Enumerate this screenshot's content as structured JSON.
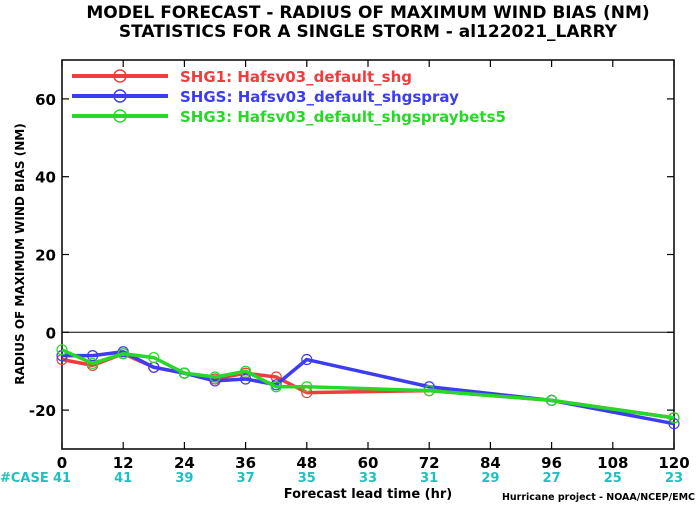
{
  "chart_data": {
    "type": "line",
    "title": "MODEL FORECAST - RADIUS OF MAXIMUM WIND BIAS (NM)",
    "subtitle": "STATISTICS FOR A SINGLE STORM - al122021_LARRY",
    "xlabel": "Forecast lead time (hr)",
    "ylabel": "RADIUS OF MAXIMUM WIND BIAS (NM)",
    "xlim": [
      0,
      120
    ],
    "ylim": [
      -30,
      70
    ],
    "x_ticks": [
      "0",
      "12",
      "24",
      "36",
      "48",
      "60",
      "72",
      "84",
      "96",
      "108",
      "120"
    ],
    "y_ticks": [
      "-20",
      "0",
      "20",
      "40",
      "60"
    ],
    "case_label": "#CASE",
    "case_counts": [
      "41",
      "41",
      "39",
      "37",
      "35",
      "33",
      "31",
      "29",
      "27",
      "25",
      "23"
    ],
    "credit": "Hurricane project - NOAA/NCEP/EMC",
    "legend_position": "top-left",
    "case_color": "#20c0c0",
    "series": [
      {
        "name": "SHG1: Hafsv03_default_shg",
        "color": "#f03c3c",
        "x": [
          0,
          6,
          12,
          18,
          24,
          30,
          36,
          42,
          48,
          72,
          96,
          120
        ],
        "y": [
          -7,
          -8.5,
          -5.5,
          -9,
          -10.5,
          -12,
          -10.5,
          -11.5,
          -15.5,
          -15,
          -17.5,
          -22
        ]
      },
      {
        "name": "SHGS: Hafsv03_default_shgspray",
        "color": "#3c3cf0",
        "x": [
          0,
          6,
          12,
          18,
          24,
          30,
          36,
          42,
          48,
          72,
          96,
          120
        ],
        "y": [
          -6,
          -6,
          -5,
          -9,
          -10.5,
          -12.5,
          -12,
          -13.5,
          -7,
          -14,
          -17.5,
          -23.5
        ]
      },
      {
        "name": "SHG3: Hafsv03_default_shgspraybets5",
        "color": "#28d828",
        "x": [
          0,
          6,
          12,
          18,
          24,
          30,
          36,
          42,
          48,
          72,
          96,
          120
        ],
        "y": [
          -4.5,
          -8,
          -5.5,
          -6.5,
          -10.5,
          -11.5,
          -10,
          -14,
          -14,
          -15,
          -17.5,
          -22
        ]
      }
    ]
  }
}
